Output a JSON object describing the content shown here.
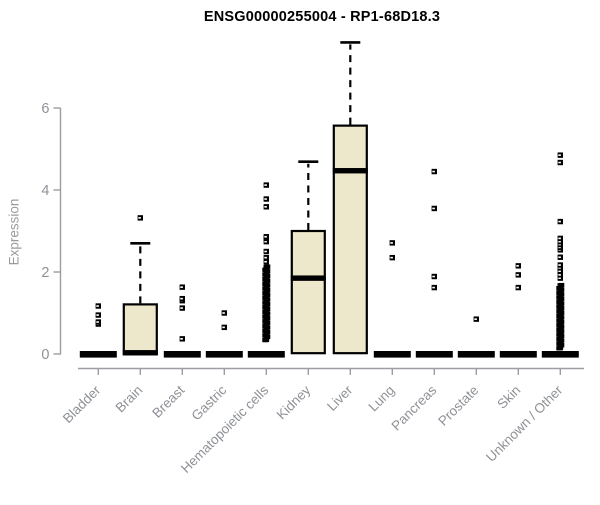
{
  "chart_data": {
    "type": "boxplot",
    "title": "ENSG00000255004 - RP1-68D18.3",
    "ylabel": "Expression",
    "yticks": [
      0,
      2,
      4,
      6
    ],
    "ylim": [
      0,
      7.9
    ],
    "grid": false,
    "legend": null,
    "colors": {
      "box_fill": "#ede8cb",
      "box_stroke": "#000000",
      "axis": "#9a9da1",
      "tick_text": "#8e9196",
      "title_text": "#000000"
    },
    "boxes": [
      {
        "category": "Bladder",
        "q1": 0,
        "median": 0,
        "q3": 0,
        "whisker_low": 0,
        "whisker_high": 0,
        "outliers": [
          0.73,
          0.78,
          0.95,
          1.17
        ],
        "dense_outlier_stack": null
      },
      {
        "category": "Brain",
        "q1": 0,
        "median": 0.03,
        "q3": 1.21,
        "whisker_low": 0,
        "whisker_high": 2.7,
        "outliers": [
          3.32
        ],
        "dense_outlier_stack": null
      },
      {
        "category": "Breast",
        "q1": 0,
        "median": 0,
        "q3": 0,
        "whisker_low": 0,
        "whisker_high": 0,
        "outliers": [
          0.37,
          1.12,
          1.3,
          1.35,
          1.63
        ],
        "dense_outlier_stack": null
      },
      {
        "category": "Gastric",
        "q1": 0,
        "median": 0,
        "q3": 0,
        "whisker_low": 0,
        "whisker_high": 0,
        "outliers": [
          0.65,
          1.0
        ],
        "dense_outlier_stack": null
      },
      {
        "category": "Hematopoietic cells",
        "q1": 0,
        "median": 0,
        "q3": 0,
        "whisker_low": 0,
        "whisker_high": 0,
        "outliers": [
          2.25,
          2.35,
          2.5,
          2.74,
          2.82,
          2.86,
          3.59,
          3.78,
          4.12
        ],
        "dense_outlier_stack": {
          "min": 0.34,
          "max": 2.13,
          "approx_count": 48
        }
      },
      {
        "category": "Kidney",
        "q1": 0.02,
        "median": 1.85,
        "q3": 3.0,
        "whisker_low": 0,
        "whisker_high": 4.69,
        "outliers": [],
        "dense_outlier_stack": null
      },
      {
        "category": "Liver",
        "q1": 0.02,
        "median": 4.47,
        "q3": 5.57,
        "whisker_low": 0,
        "whisker_high": 7.6,
        "outliers": [],
        "dense_outlier_stack": null
      },
      {
        "category": "Lung",
        "q1": 0,
        "median": 0,
        "q3": 0,
        "whisker_low": 0,
        "whisker_high": 0,
        "outliers": [
          2.35,
          2.71
        ],
        "dense_outlier_stack": null
      },
      {
        "category": "Pancreas",
        "q1": 0,
        "median": 0,
        "q3": 0,
        "whisker_low": 0,
        "whisker_high": 0,
        "outliers": [
          1.62,
          1.89,
          3.55,
          4.45
        ],
        "dense_outlier_stack": null
      },
      {
        "category": "Prostate",
        "q1": 0,
        "median": 0,
        "q3": 0,
        "whisker_low": 0,
        "whisker_high": 0,
        "outliers": [
          0.85
        ],
        "dense_outlier_stack": null
      },
      {
        "category": "Skin",
        "q1": 0,
        "median": 0,
        "q3": 0,
        "whisker_low": 0,
        "whisker_high": 0,
        "outliers": [
          1.62,
          1.93,
          2.15
        ],
        "dense_outlier_stack": null
      },
      {
        "category": "Unknown / Other",
        "q1": 0,
        "median": 0,
        "q3": 0,
        "whisker_low": 0,
        "whisker_high": 0,
        "outliers": [
          1.85,
          1.93,
          2.02,
          2.1,
          2.17,
          2.36,
          2.54,
          2.6,
          2.67,
          2.74,
          2.82,
          3.23,
          4.67,
          4.85
        ],
        "dense_outlier_stack": {
          "min": 0.14,
          "max": 1.68,
          "approx_count": 42
        }
      }
    ]
  }
}
